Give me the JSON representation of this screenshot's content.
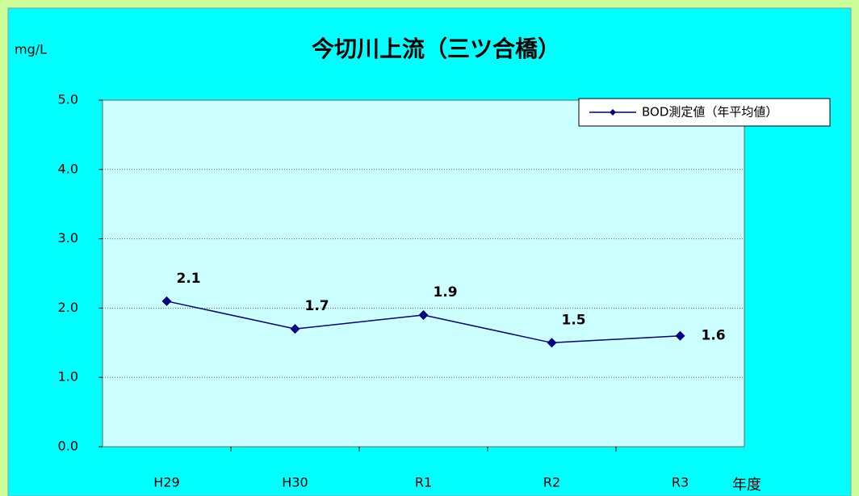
{
  "chart_data": {
    "type": "line",
    "title": "今切川上流（三ツ合橋）",
    "y_label": "mg/L",
    "x_label": "年度",
    "categories": [
      "H29",
      "H30",
      "R1",
      "R2",
      "R3"
    ],
    "series": [
      {
        "name": "BOD測定値（年平均値）",
        "color": "#000080",
        "values": [
          2.1,
          1.7,
          1.9,
          1.5,
          1.6
        ]
      }
    ],
    "ylim": [
      0,
      5
    ],
    "yticks": [
      {
        "value": 0,
        "label": "0.0"
      },
      {
        "value": 1,
        "label": "1.0"
      },
      {
        "value": 2,
        "label": "2.0"
      },
      {
        "value": 3,
        "label": "3.0"
      },
      {
        "value": 4,
        "label": "4.0"
      },
      {
        "value": 5,
        "label": "5.0"
      }
    ],
    "grid": true,
    "legend": "top-right"
  }
}
